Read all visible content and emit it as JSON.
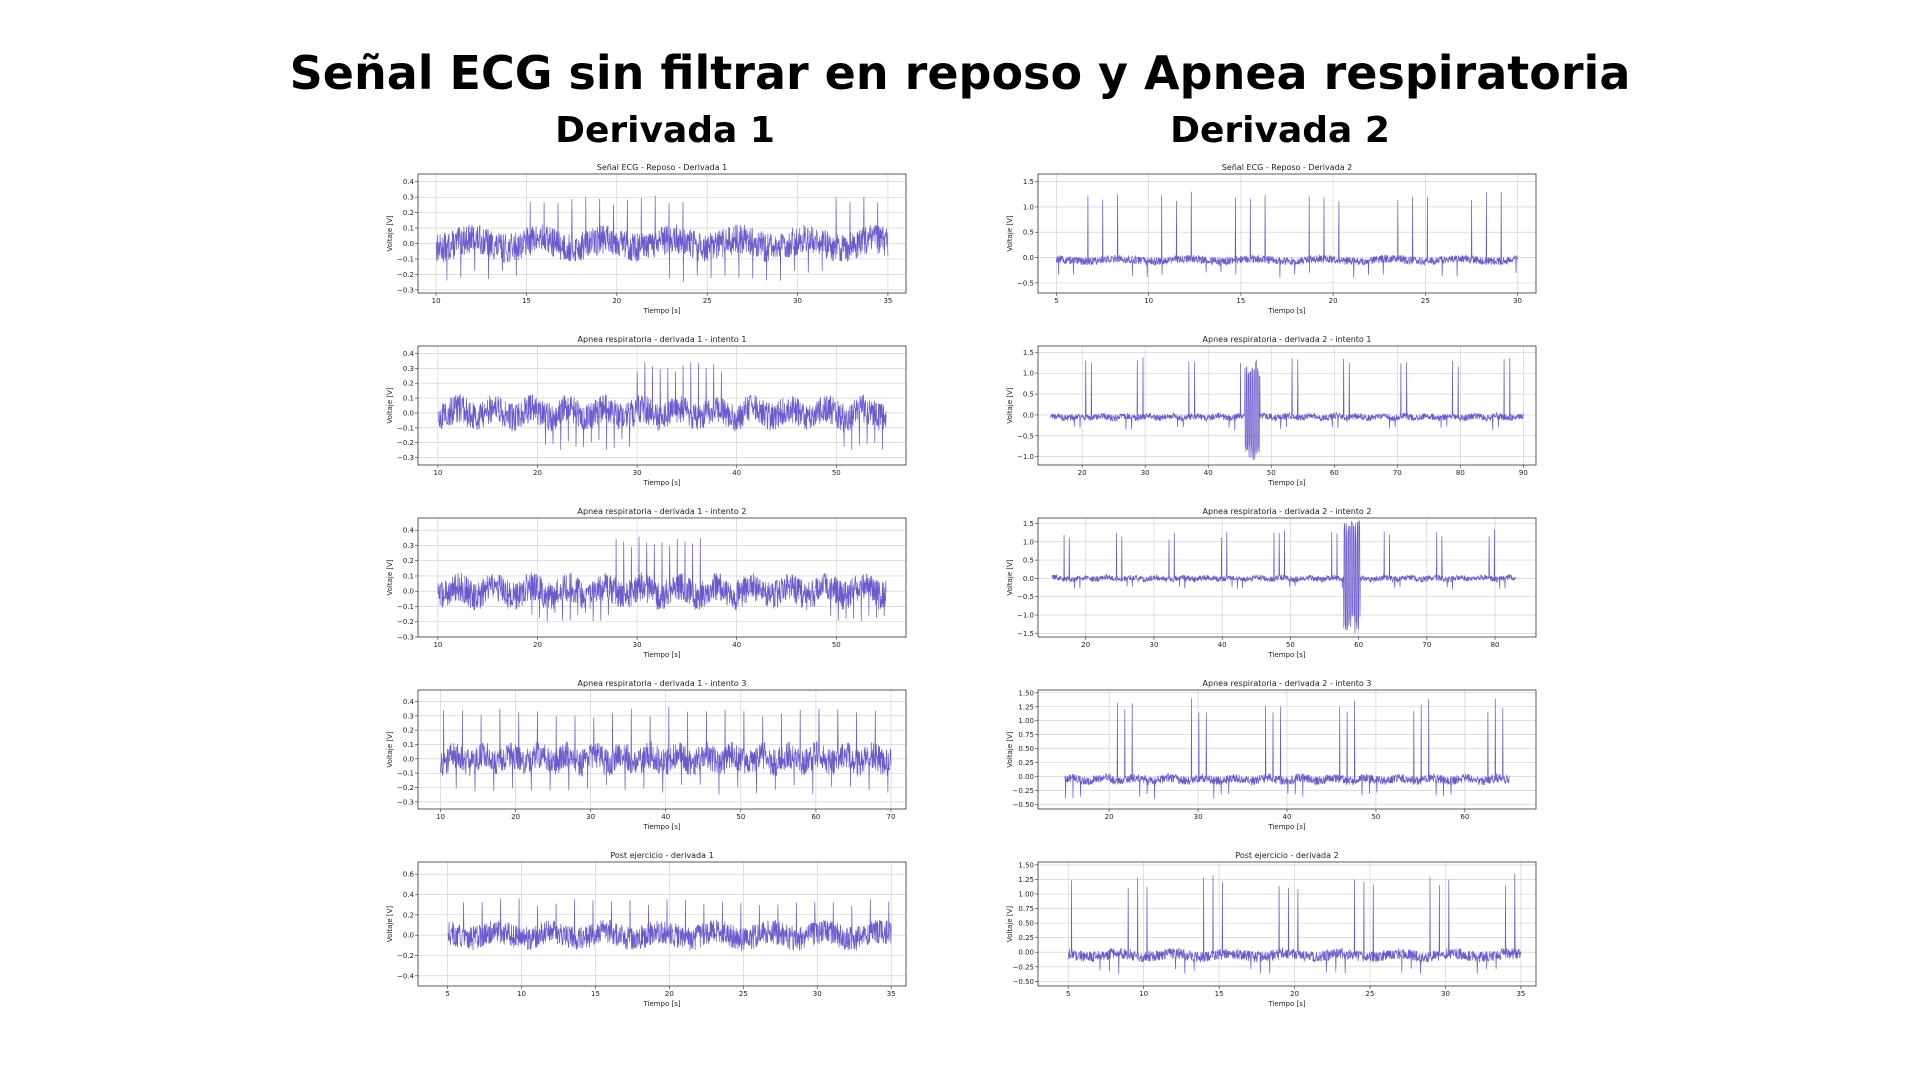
{
  "page": {
    "title": "Señal ECG sin filtrar en reposo y Apnea respiratoria",
    "columns": [
      "Derivada 1",
      "Derivada 2"
    ]
  },
  "colors": {
    "signal": "#6a5acd",
    "grid": "#cccccc",
    "frame": "#333333"
  },
  "chart_data": [
    {
      "type": "line",
      "title": "Señal ECG - Reposo - Derivada 1",
      "xlabel": "Tiempo [s]",
      "ylabel": "Voltaje [V]",
      "xlim": [
        9,
        36
      ],
      "ylim": [
        -0.32,
        0.45
      ],
      "xticks": [
        10,
        15,
        20,
        25,
        30,
        35
      ],
      "yticks": [
        -0.3,
        -0.2,
        -0.1,
        0.0,
        0.1,
        0.2,
        0.3,
        0.4
      ],
      "ytick_labels": [
        "−0.3",
        "−0.2",
        "−0.1",
        "0.0",
        "0.1",
        "0.2",
        "0.3",
        "0.4"
      ],
      "grid": true,
      "signal": {
        "t_start": 10,
        "t_end": 35,
        "baseline": 0.0,
        "noise": 0.12,
        "beats_per_s": 1.3,
        "peak": 0.3,
        "trough": -0.25
      }
    },
    {
      "type": "line",
      "title": "Señal ECG - Reposo - Derivada 2",
      "xlabel": "Tiempo [s]",
      "ylabel": "Voltaje [V]",
      "xlim": [
        4,
        31
      ],
      "ylim": [
        -0.7,
        1.65
      ],
      "xticks": [
        5,
        10,
        15,
        20,
        25,
        30
      ],
      "yticks": [
        -0.5,
        0.0,
        0.5,
        1.0,
        1.5
      ],
      "ytick_labels": [
        "−0.5",
        "0.0",
        "0.5",
        "1.0",
        "1.5"
      ],
      "grid": true,
      "signal": {
        "t_start": 5,
        "t_end": 30,
        "baseline": -0.05,
        "noise": 0.1,
        "beats_per_s": 1.25,
        "peak": 1.3,
        "trough": -0.4
      }
    },
    {
      "type": "line",
      "title": "Apnea respiratoria - derivada 1 -  intento 1",
      "xlabel": "Tiempo [s]",
      "ylabel": "Voltaje [V]",
      "xlim": [
        8,
        57
      ],
      "ylim": [
        -0.35,
        0.45
      ],
      "xticks": [
        10,
        20,
        30,
        40,
        50
      ],
      "yticks": [
        -0.3,
        -0.2,
        -0.1,
        0.0,
        0.1,
        0.2,
        0.3,
        0.4
      ],
      "ytick_labels": [
        "−0.3",
        "−0.2",
        "−0.1",
        "0.0",
        "0.1",
        "0.2",
        "0.3",
        "0.4"
      ],
      "grid": true,
      "signal": {
        "t_start": 10,
        "t_end": 55,
        "baseline": 0.0,
        "noise": 0.12,
        "beats_per_s": 1.3,
        "peak": 0.33,
        "trough": -0.25
      }
    },
    {
      "type": "line",
      "title": "Apnea respiratoria - derivada 2 -  intento 1",
      "xlabel": "Tiempo [s]",
      "ylabel": "Voltaje [V]",
      "xlim": [
        13,
        92
      ],
      "ylim": [
        -1.2,
        1.65
      ],
      "xticks": [
        20,
        30,
        40,
        50,
        60,
        70,
        80,
        90
      ],
      "yticks": [
        -1.0,
        -0.5,
        0.0,
        0.5,
        1.0,
        1.5
      ],
      "ytick_labels": [
        "−1.0",
        "−0.5",
        "0.0",
        "0.5",
        "1.0",
        "1.5"
      ],
      "grid": true,
      "signal": {
        "t_start": 15,
        "t_end": 90,
        "baseline": -0.05,
        "noise": 0.1,
        "beats_per_s": 1.1,
        "peak": 1.35,
        "trough": -0.4,
        "artifact_at": 47,
        "artifact_min": -1.1
      }
    },
    {
      "type": "line",
      "title": "Apnea respiratoria - derivada 1 -  intento 2",
      "xlabel": "Tiempo [s]",
      "ylabel": "Voltaje [V]",
      "xlim": [
        8,
        57
      ],
      "ylim": [
        -0.3,
        0.48
      ],
      "xticks": [
        10,
        20,
        30,
        40,
        50
      ],
      "yticks": [
        -0.3,
        -0.2,
        -0.1,
        0.0,
        0.1,
        0.2,
        0.3,
        0.4
      ],
      "ytick_labels": [
        "−0.3",
        "−0.2",
        "−0.1",
        "0.0",
        "0.1",
        "0.2",
        "0.3",
        "0.4"
      ],
      "grid": true,
      "signal": {
        "t_start": 10,
        "t_end": 55,
        "baseline": 0.0,
        "noise": 0.12,
        "beats_per_s": 1.3,
        "peak": 0.35,
        "trough": -0.2
      }
    },
    {
      "type": "line",
      "title": "Apnea respiratoria - derivada 2 -  intento 2",
      "xlabel": "Tiempo [s]",
      "ylabel": "Voltaje [V]",
      "xlim": [
        13,
        86
      ],
      "ylim": [
        -1.6,
        1.65
      ],
      "xticks": [
        20,
        30,
        40,
        50,
        60,
        70,
        80
      ],
      "yticks": [
        -1.5,
        -1.0,
        -0.5,
        0.0,
        0.5,
        1.0,
        1.5
      ],
      "ytick_labels": [
        "−1.5",
        "−1.0",
        "−0.5",
        "0.0",
        "0.5",
        "1.0",
        "1.5"
      ],
      "grid": true,
      "signal": {
        "t_start": 15,
        "t_end": 83,
        "baseline": 0.0,
        "noise": 0.1,
        "beats_per_s": 1.3,
        "peak": 1.3,
        "trough": -0.3,
        "artifact_at": 59,
        "artifact_min": -1.5,
        "artifact_max": 1.6
      }
    },
    {
      "type": "line",
      "title": "Apnea respiratoria - derivada 1 -  intento 3",
      "xlabel": "Tiempo [s]",
      "ylabel": "Voltaje [V]",
      "xlim": [
        7,
        72
      ],
      "ylim": [
        -0.35,
        0.48
      ],
      "xticks": [
        10,
        20,
        30,
        40,
        50,
        60,
        70
      ],
      "yticks": [
        -0.3,
        -0.2,
        -0.1,
        0.0,
        0.1,
        0.2,
        0.3,
        0.4
      ],
      "ytick_labels": [
        "−0.3",
        "−0.2",
        "−0.1",
        "0.0",
        "0.1",
        "0.2",
        "0.3",
        "0.4"
      ],
      "grid": true,
      "signal": {
        "t_start": 10,
        "t_end": 70,
        "baseline": 0.0,
        "noise": 0.12,
        "beats_per_s": 1.2,
        "peak": 0.35,
        "trough": -0.25
      }
    },
    {
      "type": "line",
      "title": "Apnea respiratoria - derivada 2 -  intento 3",
      "xlabel": "Tiempo [s]",
      "ylabel": "Voltaje [V]",
      "xlim": [
        12,
        68
      ],
      "ylim": [
        -0.58,
        1.55
      ],
      "xticks": [
        20,
        30,
        40,
        50,
        60
      ],
      "yticks": [
        -0.5,
        -0.25,
        0.0,
        0.25,
        0.5,
        0.75,
        1.0,
        1.25,
        1.5
      ],
      "ytick_labels": [
        "−0.50",
        "−0.25",
        "0.00",
        "0.25",
        "0.50",
        "0.75",
        "1.00",
        "1.25",
        "1.50"
      ],
      "grid": true,
      "signal": {
        "t_start": 15,
        "t_end": 65,
        "baseline": -0.05,
        "noise": 0.1,
        "beats_per_s": 1.2,
        "peak": 1.35,
        "trough": -0.4
      }
    },
    {
      "type": "line",
      "title": "Post ejercicio - derivada 1",
      "xlabel": "Tiempo [s]",
      "ylabel": "Voltaje [V]",
      "xlim": [
        3,
        36
      ],
      "ylim": [
        -0.5,
        0.72
      ],
      "xticks": [
        5,
        10,
        15,
        20,
        25,
        30,
        35
      ],
      "yticks": [
        -0.4,
        -0.2,
        0.0,
        0.2,
        0.4,
        0.6
      ],
      "ytick_labels": [
        "−0.4",
        "−0.2",
        "0.0",
        "0.2",
        "0.4",
        "0.6"
      ],
      "grid": true,
      "signal": {
        "t_start": 5,
        "t_end": 35,
        "baseline": 0.0,
        "noise": 0.15,
        "beats_per_s": 1.6,
        "peak": 0.35,
        "trough": -0.3
      }
    },
    {
      "type": "line",
      "title": "Post ejercicio - derivada 2",
      "xlabel": "Tiempo [s]",
      "ylabel": "Voltaje [V]",
      "xlim": [
        3,
        36
      ],
      "ylim": [
        -0.58,
        1.55
      ],
      "xticks": [
        5,
        10,
        15,
        20,
        25,
        30,
        35
      ],
      "yticks": [
        -0.5,
        -0.25,
        0.0,
        0.25,
        0.5,
        0.75,
        1.0,
        1.25,
        1.5
      ],
      "ytick_labels": [
        "−0.50",
        "−0.25",
        "0.00",
        "0.25",
        "0.50",
        "0.75",
        "1.00",
        "1.25",
        "1.50"
      ],
      "grid": true,
      "signal": {
        "t_start": 5,
        "t_end": 35,
        "baseline": -0.05,
        "noise": 0.12,
        "beats_per_s": 1.6,
        "peak": 1.3,
        "trough": -0.4
      }
    }
  ]
}
